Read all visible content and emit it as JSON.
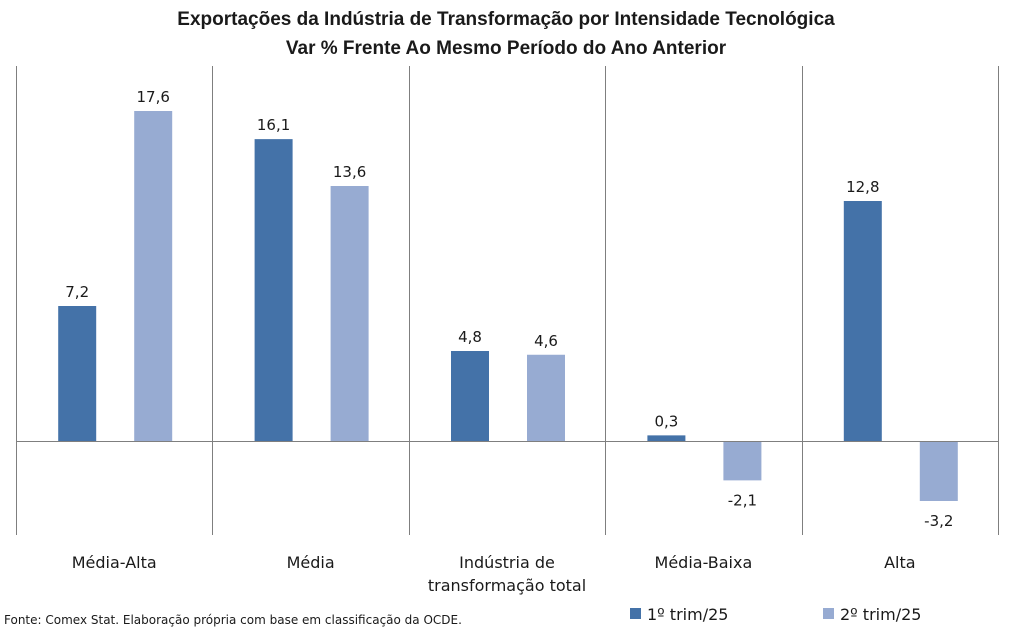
{
  "chart_data": {
    "type": "bar",
    "title": "Exportações da Indústria de Transformação por Intensidade Tecnológica",
    "subtitle": "Var % Frente Ao Mesmo Período do Ano Anterior",
    "categories": [
      "Média-Alta",
      "Média",
      "Indústria de transformação total",
      "Média-Baixa",
      "Alta"
    ],
    "category_label_lines": [
      [
        "Média-Alta"
      ],
      [
        "Média"
      ],
      [
        "Indústria de",
        "transformação total"
      ],
      [
        "Média-Baixa"
      ],
      [
        "Alta"
      ]
    ],
    "series": [
      {
        "name": "1º trim/25",
        "color": "#4472a8",
        "values": [
          7.2,
          16.1,
          4.8,
          0.3,
          12.8
        ],
        "labels": [
          "7,2",
          "16,1",
          "4,8",
          "0,3",
          "12,8"
        ]
      },
      {
        "name": "2º trim/25",
        "color": "#97abd2",
        "values": [
          17.6,
          13.6,
          4.6,
          -2.1,
          -3.2
        ],
        "labels": [
          "17,6",
          "13,6",
          "4,6",
          "-2,1",
          "-3,2"
        ]
      }
    ],
    "ylim": [
      -5.2,
      20
    ],
    "grid": false,
    "legend_position": "bottom-right",
    "source": "Fonte: Comex Stat. Elaboração própria com base em classificação da OCDE."
  }
}
